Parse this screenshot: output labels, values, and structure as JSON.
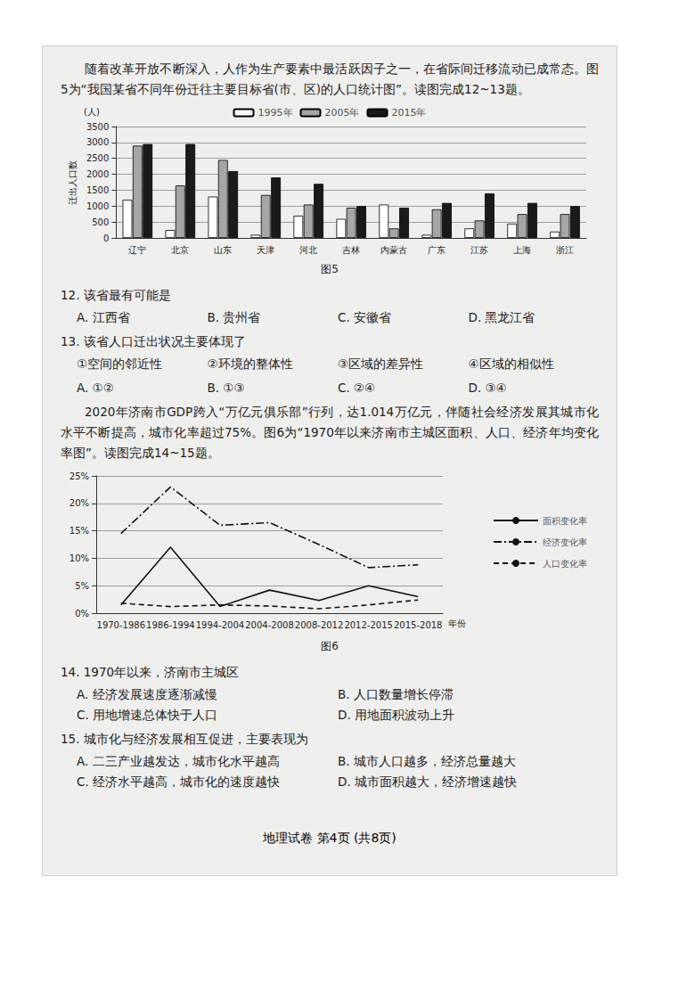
{
  "page": [
    {
      "kind": "para",
      "text": "随着改革开放不断深入，人作为生产要素中最活跃因子之一，在省际间迁移流动已成常态。图5为“我国某省不同年份迁往主要目标省(市、区)的人口统计图”。读图完成12~13题。"
    },
    {
      "kind": "figure",
      "chart": 0
    },
    {
      "kind": "caption",
      "text": "图5"
    },
    {
      "kind": "question",
      "stem": "12. 该省最有可能是",
      "options": [
        "A. 江西省",
        "B. 贵州省",
        "C. 安徽省",
        "D. 黑龙江省"
      ]
    },
    {
      "kind": "question",
      "stem": "13. 该省人口迁出状况主要体现了",
      "items": [
        "①空间的邻近性",
        "②环境的整体性",
        "③区域的差异性",
        "④区域的相似性"
      ],
      "options": [
        "A. ①②",
        "B. ①③",
        "C. ②④",
        "D. ③④"
      ]
    },
    {
      "kind": "para",
      "text": "2020年济南市GDP跨入“万亿元俱乐部”行列，达1.014万亿元，伴随社会经济发展其城市化水平不断提高，城市化率超过75%。图6为“1970年以来济南市主城区面积、人口、经济年均变化率图”。读图完成14~15题。"
    },
    {
      "kind": "figure",
      "chart": 1
    },
    {
      "kind": "caption",
      "text": "图6"
    },
    {
      "kind": "question",
      "stem": "14. 1970年以来，济南市主城区",
      "options": [
        "A. 经济发展速度逐渐减慢",
        "B. 人口数量增长停滞",
        "C. 用地增速总体快于人口",
        "D. 用地面积波动上升"
      ]
    },
    {
      "kind": "question",
      "stem": "15. 城市化与经济发展相互促进，主要表现为",
      "options": [
        "A. 二三产业越发达，城市化水平越高",
        "B. 城市人口越多，经济总量越大",
        "C. 经济水平越高，城市化的速度越快",
        "D. 城市面积越大，经济增速越快"
      ]
    }
  ],
  "footer": "地理试卷  第4页 (共8页)",
  "chart_data": [
    {
      "type": "bar",
      "ylabel": "迁出人口数",
      "yunit": "(人)",
      "categories": [
        "辽宁",
        "北京",
        "山东",
        "天津",
        "河北",
        "吉林",
        "内蒙古",
        "广东",
        "江苏",
        "上海",
        "浙江"
      ],
      "series": [
        {
          "name": "1995年",
          "color": "#ffffff",
          "values": [
            1200,
            250,
            1300,
            100,
            700,
            600,
            1050,
            100,
            300,
            450,
            200
          ]
        },
        {
          "name": "2005年",
          "color": "#a6a6a6",
          "values": [
            2900,
            1650,
            2450,
            1350,
            1050,
            950,
            300,
            900,
            550,
            750,
            750
          ]
        },
        {
          "name": "2015年",
          "color": "#1a1a1a",
          "values": [
            2950,
            2950,
            2100,
            1900,
            1700,
            1000,
            950,
            1100,
            1400,
            1100,
            1000
          ]
        }
      ],
      "ylim": [
        0,
        3500
      ],
      "yticks": [
        0,
        500,
        1000,
        1500,
        2000,
        2500,
        3000,
        3500
      ],
      "grid": true,
      "legend": "top"
    },
    {
      "type": "line",
      "xlabel": "年份",
      "categories": [
        "1970-1986",
        "1986-1994",
        "1994-2004",
        "2004-2008",
        "2008-2012",
        "2012-2015",
        "2015-2018"
      ],
      "series": [
        {
          "name": "面积变化率",
          "color": "#111111",
          "line_style": "solid",
          "values": [
            1.5,
            12,
            1.2,
            4.2,
            2.3,
            5,
            3
          ]
        },
        {
          "name": "经济变化率",
          "color": "#111111",
          "line_style": "dashdot",
          "values": [
            14.5,
            23,
            16,
            16.5,
            12.5,
            8.3,
            8.8
          ]
        },
        {
          "name": "人口变化率",
          "color": "#111111",
          "line_style": "dashed",
          "values": [
            1.8,
            1.2,
            1.5,
            1.3,
            0.8,
            1.5,
            2.4
          ]
        }
      ],
      "ylim": [
        0,
        25
      ],
      "yticks": [
        {
          "value": 0,
          "label": "0%"
        },
        {
          "value": 5,
          "label": "5%"
        },
        {
          "value": 10,
          "label": "10%"
        },
        {
          "value": 15,
          "label": "15%"
        },
        {
          "value": 20,
          "label": "20%"
        },
        {
          "value": 25,
          "label": "25%"
        }
      ],
      "grid": true,
      "legend": "right"
    }
  ]
}
